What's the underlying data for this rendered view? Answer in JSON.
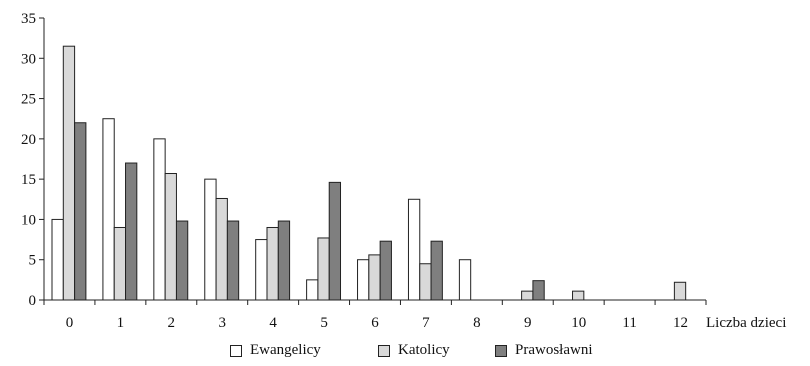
{
  "chart_data": {
    "type": "bar",
    "categories": [
      "0",
      "1",
      "2",
      "3",
      "4",
      "5",
      "6",
      "7",
      "8",
      "9",
      "10",
      "11",
      "12"
    ],
    "series": [
      {
        "name": "Ewangelicy",
        "color": "#ffffff",
        "values": [
          10,
          22.5,
          20,
          15,
          7.5,
          2.5,
          5,
          12.5,
          5,
          0,
          0,
          0,
          0
        ]
      },
      {
        "name": "Katolicy",
        "color": "#d9d9d9",
        "values": [
          31.5,
          9,
          15.7,
          12.6,
          9,
          7.7,
          5.6,
          4.5,
          0,
          1.1,
          1.1,
          0,
          2.2
        ]
      },
      {
        "name": "Prawosławni",
        "color": "#7f7f7f",
        "values": [
          22,
          17,
          9.8,
          9.8,
          9.8,
          14.6,
          7.3,
          7.3,
          0,
          2.4,
          0,
          0,
          0
        ]
      }
    ],
    "y_ticks": [
      "0",
      "5",
      "10",
      "15",
      "20",
      "25",
      "30",
      "35"
    ],
    "ylim": [
      0,
      35
    ],
    "xlabel": "Liczba dzieci",
    "ylabel": "",
    "grid": false,
    "legend_position": "bottom"
  }
}
